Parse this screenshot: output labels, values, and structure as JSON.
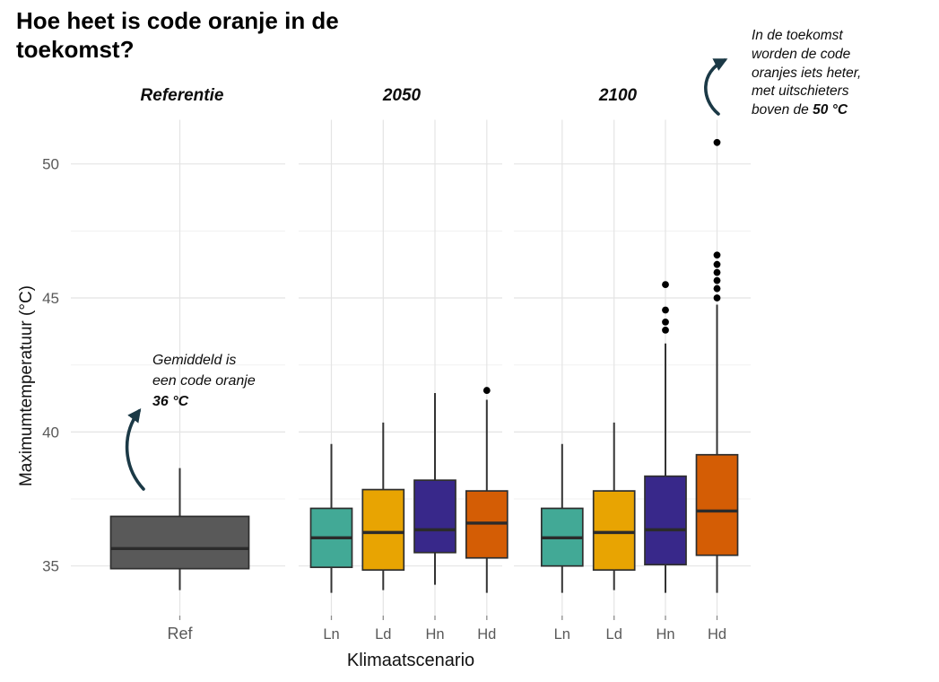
{
  "title": "Hoe heet is code oranje in de toekomst?",
  "annotations": {
    "left": {
      "text": "Gemiddeld is een code oranje",
      "bold": "36 °C"
    },
    "right": {
      "text": "In de toekomst worden de code oranjes iets heter, met uitschieters boven de",
      "bold": "50 °C"
    }
  },
  "colors": {
    "Ref": "#595959",
    "Ln": "#42A996",
    "Ld": "#E8A402",
    "Hn": "#38288A",
    "Hd": "#D45D05",
    "box_border": "#2E2E2E",
    "median": "#2B2B2B",
    "whisker": "#333333",
    "outlier": "#000000",
    "grid_major": "#E4E4E4",
    "grid_minor": "#F1F1F1",
    "tick_mark": "#8C8C8C",
    "axis_text": "#595959",
    "annotation_arrow": "#1B3946"
  },
  "chart_data": {
    "type": "boxplot",
    "title": "Hoe heet is code oranje in de toekomst?",
    "xlabel": "Klimaatscenario",
    "ylabel": "Maximumtemperatuur (°C)",
    "yticks": [
      35,
      40,
      45,
      50
    ],
    "y_minor": [
      37.5,
      42.5,
      47.5
    ],
    "ylim": [
      33.1,
      51.7
    ],
    "grid": true,
    "legend": false,
    "panels": [
      {
        "label": "Referentie",
        "boxes": [
          {
            "category": "Ref",
            "whisker_low": 34.1,
            "q1": 34.9,
            "median": 35.65,
            "q3": 36.85,
            "whisker_high": 38.65,
            "outliers": []
          }
        ]
      },
      {
        "label": "2050",
        "boxes": [
          {
            "category": "Ln",
            "whisker_low": 34.0,
            "q1": 34.95,
            "median": 36.05,
            "q3": 37.15,
            "whisker_high": 39.55,
            "outliers": []
          },
          {
            "category": "Ld",
            "whisker_low": 34.1,
            "q1": 34.85,
            "median": 36.25,
            "q3": 37.85,
            "whisker_high": 40.35,
            "outliers": []
          },
          {
            "category": "Hn",
            "whisker_low": 34.3,
            "q1": 35.5,
            "median": 36.35,
            "q3": 38.2,
            "whisker_high": 41.45,
            "outliers": []
          },
          {
            "category": "Hd",
            "whisker_low": 34.0,
            "q1": 35.3,
            "median": 36.6,
            "q3": 37.8,
            "whisker_high": 41.2,
            "outliers": [
              41.55
            ]
          }
        ]
      },
      {
        "label": "2100",
        "boxes": [
          {
            "category": "Ln",
            "whisker_low": 34.0,
            "q1": 35.0,
            "median": 36.05,
            "q3": 37.15,
            "whisker_high": 39.55,
            "outliers": []
          },
          {
            "category": "Ld",
            "whisker_low": 34.1,
            "q1": 34.85,
            "median": 36.25,
            "q3": 37.8,
            "whisker_high": 40.35,
            "outliers": []
          },
          {
            "category": "Hn",
            "whisker_low": 34.0,
            "q1": 35.05,
            "median": 36.35,
            "q3": 38.35,
            "whisker_high": 43.3,
            "outliers": [
              43.8,
              44.1,
              44.55,
              45.5
            ]
          },
          {
            "category": "Hd",
            "whisker_low": 34.0,
            "q1": 35.4,
            "median": 37.05,
            "q3": 39.15,
            "whisker_high": 44.75,
            "outliers": [
              45.0,
              45.35,
              45.65,
              45.95,
              46.25,
              46.6,
              50.8
            ]
          }
        ]
      }
    ]
  }
}
